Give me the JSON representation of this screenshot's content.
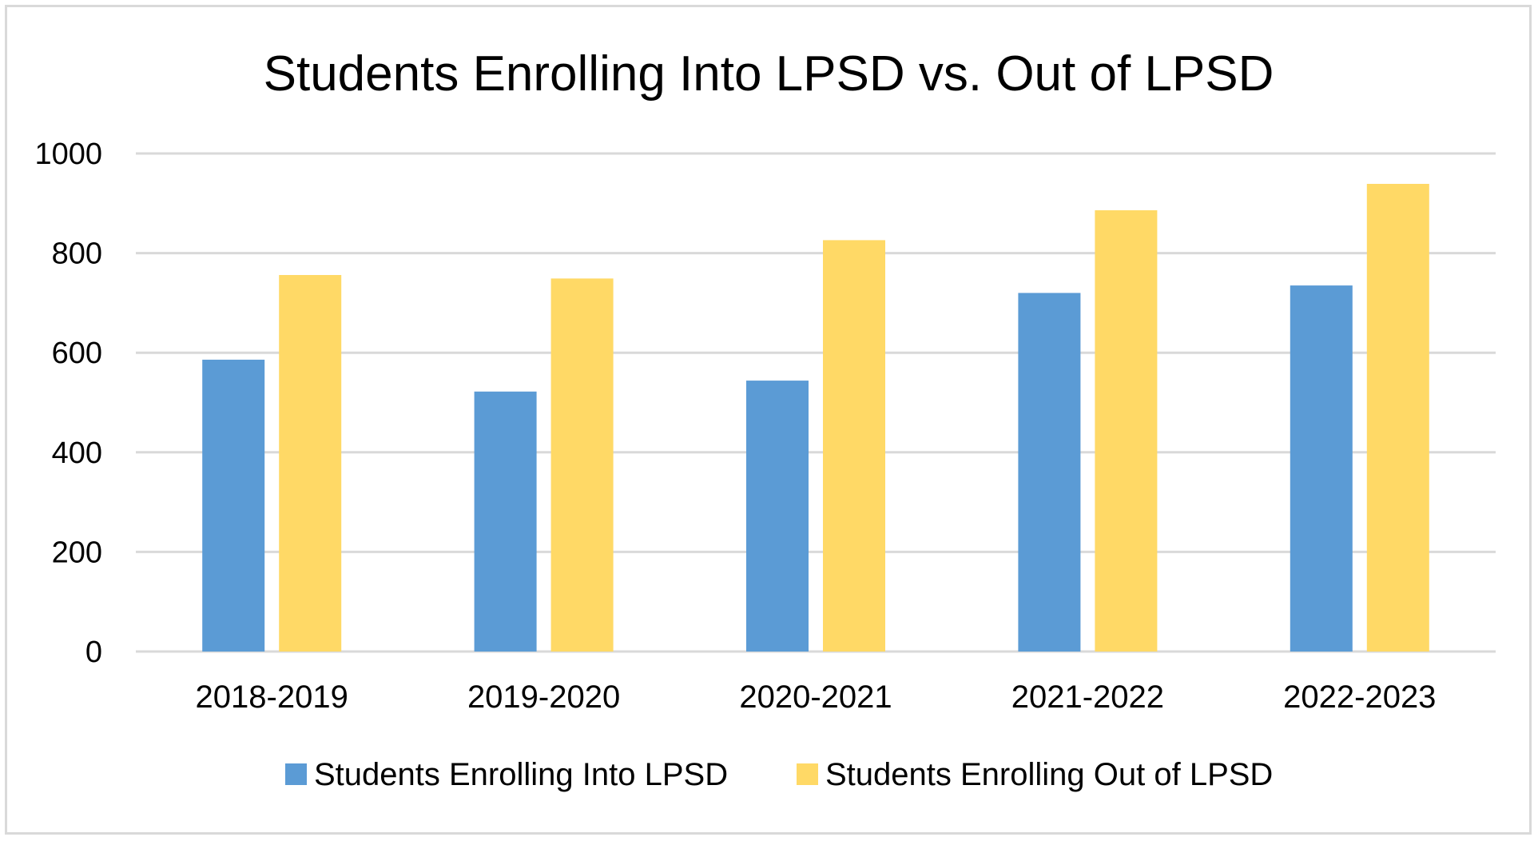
{
  "chart_data": {
    "type": "bar",
    "title": "Students Enrolling Into LPSD vs. Out of LPSD",
    "xlabel": "",
    "ylabel": "",
    "ylim": [
      0,
      1000
    ],
    "yticks": [
      "0",
      "200",
      "400",
      "600",
      "800",
      "1000"
    ],
    "categories": [
      "2018-2019",
      "2019-2020",
      "2020-2021",
      "2021-2022",
      "2022-2023"
    ],
    "series": [
      {
        "name": "Students Enrolling Into LPSD",
        "color": "#5b9bd5",
        "values": [
          586,
          522,
          544,
          720,
          735
        ]
      },
      {
        "name": "Students Enrolling Out of LPSD",
        "color": "#ffd966",
        "values": [
          756,
          749,
          826,
          886,
          939
        ]
      }
    ],
    "grid": true,
    "legend": "bottom"
  }
}
